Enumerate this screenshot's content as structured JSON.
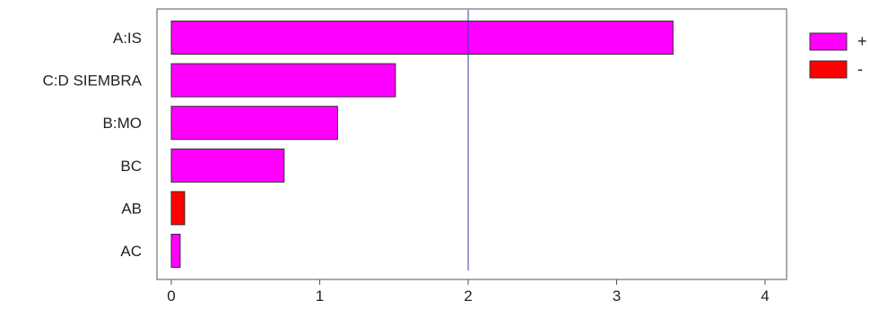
{
  "chart_data": {
    "type": "bar",
    "orientation": "horizontal",
    "categories": [
      "A:IS",
      "C:D SIEMBRA",
      "B:MO",
      "BC",
      "AB",
      "AC"
    ],
    "values": [
      3.38,
      1.51,
      1.12,
      0.76,
      0.09,
      0.06
    ],
    "signs": [
      "+",
      "+",
      "+",
      "+",
      "-",
      "+"
    ],
    "xlim": [
      0,
      4
    ],
    "x_ticks": [
      "0",
      "1",
      "2",
      "3",
      "4"
    ],
    "reference_line": 2.0,
    "legend": [
      {
        "label": "+",
        "color": "#ff00ff"
      },
      {
        "label": "-",
        "color": "#ff0000"
      }
    ],
    "legend_position": "top-right",
    "grid": false,
    "colors": {
      "positive": "#ff00ff",
      "negative": "#ff0000",
      "reference_line": "#3a3aa8"
    }
  }
}
